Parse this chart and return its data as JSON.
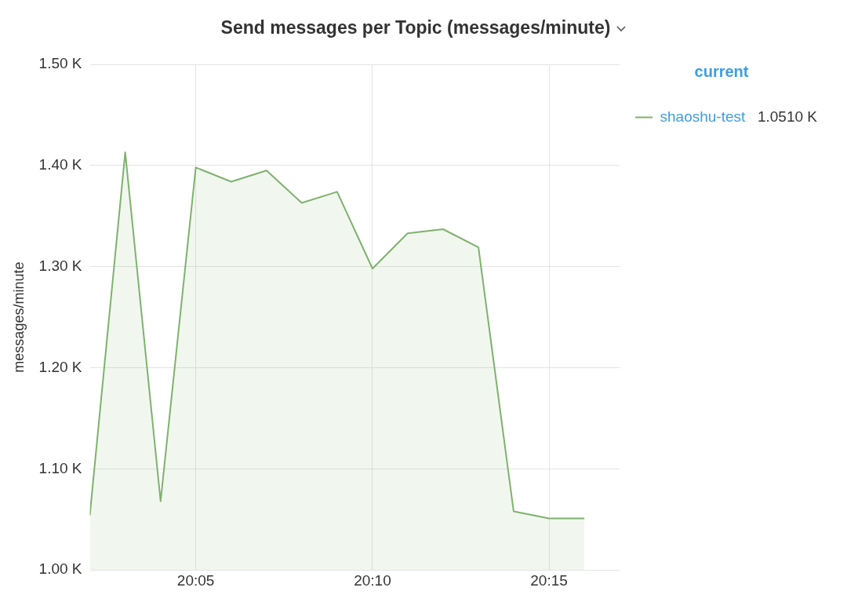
{
  "chart_data": {
    "type": "area",
    "title": "Send messages per Topic (messages/minute)",
    "ylabel": "messages/minute",
    "legend_title": "current",
    "legend": "top right",
    "grid": true,
    "marker": "none",
    "line_style": "solid",
    "x": [
      20.0333,
      20.05,
      20.0667,
      20.0833,
      20.1,
      20.1167,
      20.1333,
      20.15,
      20.1667,
      20.1833,
      20.2,
      20.2167,
      20.2333,
      20.25,
      20.2667
    ],
    "series": [
      {
        "name": "shaoshu-test",
        "color": "#7eb26d",
        "values": [
          1054,
          1413,
          1068,
          1398,
          1384,
          1395,
          1363,
          1374,
          1298,
          1333,
          1337,
          1319,
          1058,
          1051,
          1051
        ]
      }
    ],
    "annotations": [
      "1.0510 K"
    ],
    "xlim": [
      20.0333,
      20.2833
    ],
    "xticks": [
      {
        "value": 20.0833,
        "label": "20:05"
      },
      {
        "value": 20.1667,
        "label": "20:10"
      },
      {
        "value": 20.25,
        "label": "20:15"
      }
    ],
    "ylim": [
      1000,
      1500
    ],
    "yticks": [
      {
        "value": 1000,
        "label": "1.00 K"
      },
      {
        "value": 1100,
        "label": "1.10 K"
      },
      {
        "value": 1200,
        "label": "1.20 K"
      },
      {
        "value": 1300,
        "label": "1.30 K"
      },
      {
        "value": 1400,
        "label": "1.40 K"
      },
      {
        "value": 1500,
        "label": "1.50 K"
      }
    ]
  }
}
